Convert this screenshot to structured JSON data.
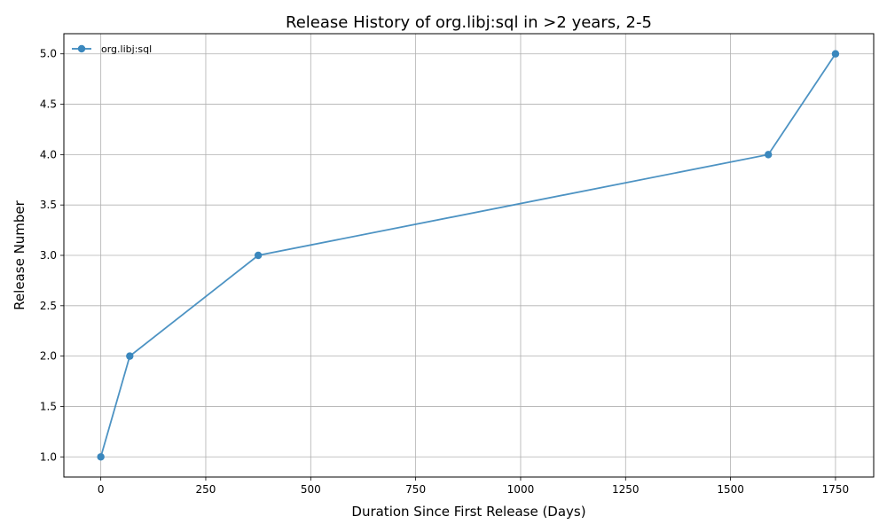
{
  "chart_data": {
    "type": "line",
    "title": "Release History of org.libj:sql in >2 years, 2-5",
    "xlabel": "Duration Since First Release (Days)",
    "ylabel": "Release Number",
    "xlim": [
      -88,
      1841
    ],
    "ylim": [
      0.8,
      5.2
    ],
    "xticks": [
      0,
      250,
      500,
      750,
      1000,
      1250,
      1500,
      1750
    ],
    "yticks": [
      1.0,
      1.5,
      2.0,
      2.5,
      3.0,
      3.5,
      4.0,
      4.5,
      5.0
    ],
    "xtick_labels": [
      "0",
      "250",
      "500",
      "750",
      "1000",
      "1250",
      "1500",
      "1750"
    ],
    "ytick_labels": [
      "1.0",
      "1.5",
      "2.0",
      "2.5",
      "3.0",
      "3.5",
      "4.0",
      "4.5",
      "5.0"
    ],
    "grid": true,
    "legend_position": "top-left",
    "series": [
      {
        "name": "org.libj:sql",
        "color": "#3a87bd",
        "marker": "circle",
        "x": [
          0,
          69,
          375,
          1590,
          1750
        ],
        "y": [
          1,
          2,
          3,
          4,
          5
        ]
      }
    ]
  }
}
